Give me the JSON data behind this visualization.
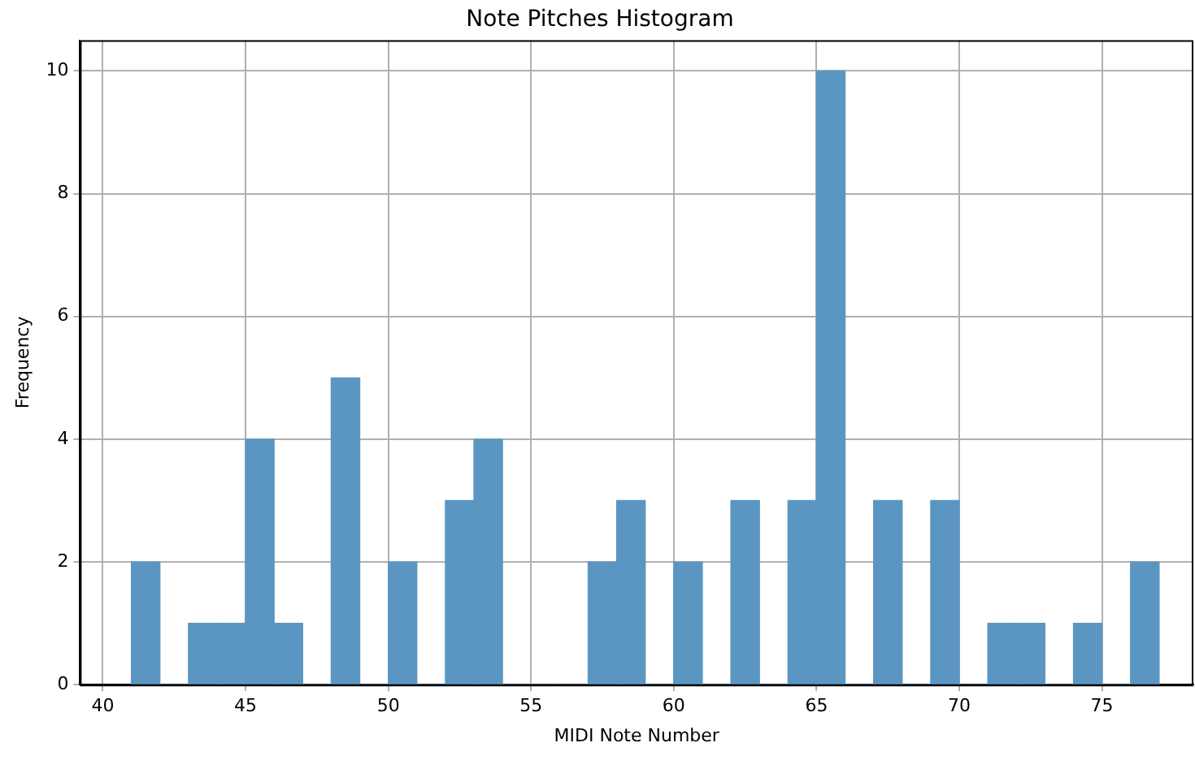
{
  "chart_data": {
    "type": "histogram",
    "title": "Note Pitches Histogram",
    "xlabel": "MIDI Note Number",
    "ylabel": "Frequency",
    "bins": [
      41,
      42,
      43,
      44,
      45,
      46,
      47,
      48,
      49,
      50,
      51,
      52,
      53,
      54,
      55,
      56,
      57,
      58,
      59,
      60,
      61,
      62,
      63,
      64,
      65,
      66,
      67,
      68,
      69,
      70,
      71,
      72,
      73,
      74,
      75,
      76,
      77
    ],
    "values": [
      2,
      0,
      1,
      1,
      4,
      1,
      0,
      5,
      0,
      2,
      0,
      3,
      4,
      0,
      0,
      0,
      2,
      3,
      0,
      2,
      0,
      3,
      0,
      3,
      10,
      0,
      3,
      0,
      3,
      0,
      1,
      1,
      0,
      1,
      0,
      2
    ],
    "color": "#5b96c2",
    "xlim": [
      39.2,
      78.2
    ],
    "xticks": [
      40,
      45,
      50,
      55,
      60,
      65,
      70,
      75
    ],
    "ylim": [
      0,
      10.5
    ],
    "yticks": [
      0,
      2,
      4,
      6,
      8,
      10
    ],
    "grid": true
  }
}
